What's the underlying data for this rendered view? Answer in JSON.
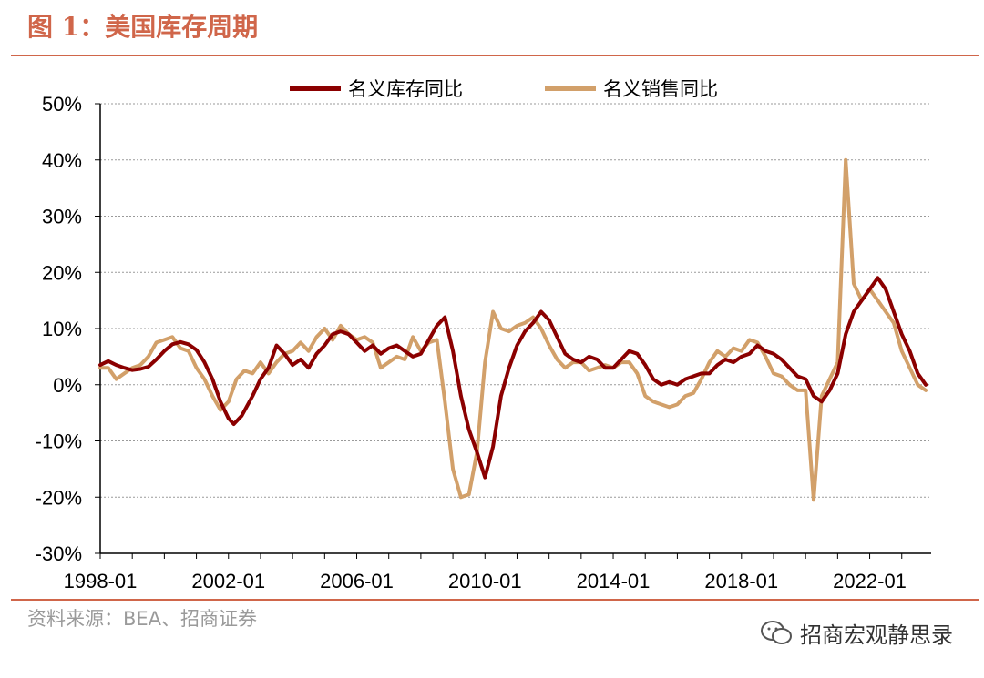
{
  "header": {
    "title": "图 1：美国库存周期"
  },
  "footer": {
    "source": "资料来源：BEA、招商证券",
    "watermark": "招商宏观静思录"
  },
  "colors": {
    "accent": "#D0664A",
    "inventory": "#8B0000",
    "sales": "#D2A06A",
    "grid": "#9a9a9a"
  },
  "chart_data": {
    "type": "line",
    "title": "",
    "xlabel": "",
    "ylabel": "",
    "ylim": [
      -30,
      50
    ],
    "y_ticks": [
      -30,
      -20,
      -10,
      0,
      10,
      20,
      30,
      40,
      50
    ],
    "y_tick_labels": [
      "-30%",
      "-20%",
      "-10%",
      "0%",
      "10%",
      "20%",
      "30%",
      "40%",
      "50%"
    ],
    "x_range": [
      "1998-01",
      "2023-12"
    ],
    "x_ticks": [
      "1998-01",
      "2002-01",
      "2006-01",
      "2010-01",
      "2014-01",
      "2018-01",
      "2022-01"
    ],
    "grid": "horizontal dotted",
    "legend": "top-center",
    "series": [
      {
        "name": "名义库存同比",
        "color": "#8B0000",
        "points": [
          [
            "1998-01",
            3.5
          ],
          [
            "1998-04",
            4.2
          ],
          [
            "1998-07",
            3.5
          ],
          [
            "1998-10",
            3.0
          ],
          [
            "1999-01",
            2.6
          ],
          [
            "1999-04",
            2.8
          ],
          [
            "1999-07",
            3.2
          ],
          [
            "1999-10",
            4.5
          ],
          [
            "2000-01",
            6.0
          ],
          [
            "2000-04",
            7.2
          ],
          [
            "2000-07",
            7.6
          ],
          [
            "2000-10",
            7.2
          ],
          [
            "2001-01",
            6.2
          ],
          [
            "2001-04",
            4.0
          ],
          [
            "2001-07",
            1.0
          ],
          [
            "2001-10",
            -3.0
          ],
          [
            "2002-01",
            -6.0
          ],
          [
            "2002-03",
            -7.0
          ],
          [
            "2002-06",
            -5.5
          ],
          [
            "2002-10",
            -2.0
          ],
          [
            "2003-01",
            1.0
          ],
          [
            "2003-04",
            3.0
          ],
          [
            "2003-07",
            7.0
          ],
          [
            "2003-10",
            5.5
          ],
          [
            "2004-01",
            3.5
          ],
          [
            "2004-04",
            4.5
          ],
          [
            "2004-07",
            3.0
          ],
          [
            "2004-10",
            5.5
          ],
          [
            "2005-01",
            7.0
          ],
          [
            "2005-04",
            9.0
          ],
          [
            "2005-07",
            9.5
          ],
          [
            "2005-10",
            9.0
          ],
          [
            "2006-01",
            7.5
          ],
          [
            "2006-04",
            6.0
          ],
          [
            "2006-07",
            7.0
          ],
          [
            "2006-10",
            5.5
          ],
          [
            "2007-01",
            6.5
          ],
          [
            "2007-04",
            7.0
          ],
          [
            "2007-07",
            6.0
          ],
          [
            "2007-10",
            5.0
          ],
          [
            "2008-01",
            5.5
          ],
          [
            "2008-04",
            8.0
          ],
          [
            "2008-07",
            10.5
          ],
          [
            "2008-10",
            12.0
          ],
          [
            "2009-01",
            6.0
          ],
          [
            "2009-04",
            -2.0
          ],
          [
            "2009-07",
            -8.0
          ],
          [
            "2009-10",
            -12.0
          ],
          [
            "2010-01",
            -16.5
          ],
          [
            "2010-04",
            -11.0
          ],
          [
            "2010-07",
            -2.0
          ],
          [
            "2010-10",
            3.0
          ],
          [
            "2011-01",
            7.0
          ],
          [
            "2011-04",
            9.5
          ],
          [
            "2011-07",
            11.0
          ],
          [
            "2011-10",
            13.0
          ],
          [
            "2012-01",
            11.5
          ],
          [
            "2012-04",
            8.5
          ],
          [
            "2012-07",
            5.5
          ],
          [
            "2012-10",
            4.5
          ],
          [
            "2013-01",
            4.0
          ],
          [
            "2013-04",
            5.0
          ],
          [
            "2013-07",
            4.5
          ],
          [
            "2013-10",
            3.0
          ],
          [
            "2014-01",
            3.0
          ],
          [
            "2014-04",
            4.5
          ],
          [
            "2014-07",
            6.0
          ],
          [
            "2014-10",
            5.5
          ],
          [
            "2015-01",
            3.5
          ],
          [
            "2015-04",
            1.0
          ],
          [
            "2015-07",
            0.0
          ],
          [
            "2015-10",
            0.5
          ],
          [
            "2016-01",
            0.0
          ],
          [
            "2016-04",
            1.0
          ],
          [
            "2016-07",
            1.5
          ],
          [
            "2016-10",
            2.0
          ],
          [
            "2017-01",
            2.0
          ],
          [
            "2017-04",
            3.5
          ],
          [
            "2017-07",
            4.5
          ],
          [
            "2017-10",
            4.0
          ],
          [
            "2018-01",
            5.0
          ],
          [
            "2018-04",
            5.5
          ],
          [
            "2018-07",
            7.0
          ],
          [
            "2018-10",
            6.0
          ],
          [
            "2019-01",
            5.5
          ],
          [
            "2019-04",
            4.5
          ],
          [
            "2019-07",
            3.0
          ],
          [
            "2019-10",
            1.5
          ],
          [
            "2020-01",
            1.0
          ],
          [
            "2020-04",
            -2.0
          ],
          [
            "2020-07",
            -3.0
          ],
          [
            "2020-10",
            -1.0
          ],
          [
            "2021-01",
            2.0
          ],
          [
            "2021-04",
            9.0
          ],
          [
            "2021-07",
            13.0
          ],
          [
            "2021-10",
            15.0
          ],
          [
            "2022-01",
            17.0
          ],
          [
            "2022-04",
            19.0
          ],
          [
            "2022-07",
            17.0
          ],
          [
            "2022-10",
            13.0
          ],
          [
            "2023-01",
            9.0
          ],
          [
            "2023-04",
            6.0
          ],
          [
            "2023-07",
            2.0
          ],
          [
            "2023-10",
            0.0
          ]
        ]
      },
      {
        "name": "名义销售同比",
        "color": "#D2A06A",
        "points": [
          [
            "1998-01",
            3.0
          ],
          [
            "1998-04",
            3.0
          ],
          [
            "1998-07",
            1.0
          ],
          [
            "1998-10",
            2.0
          ],
          [
            "1999-01",
            3.0
          ],
          [
            "1999-04",
            3.5
          ],
          [
            "1999-07",
            5.0
          ],
          [
            "1999-10",
            7.5
          ],
          [
            "2000-01",
            8.0
          ],
          [
            "2000-04",
            8.5
          ],
          [
            "2000-07",
            6.5
          ],
          [
            "2000-10",
            6.0
          ],
          [
            "2001-01",
            3.0
          ],
          [
            "2001-04",
            1.0
          ],
          [
            "2001-07",
            -2.0
          ],
          [
            "2001-10",
            -4.5
          ],
          [
            "2002-01",
            -3.0
          ],
          [
            "2002-04",
            1.0
          ],
          [
            "2002-07",
            2.5
          ],
          [
            "2002-10",
            2.0
          ],
          [
            "2003-01",
            4.0
          ],
          [
            "2003-04",
            2.0
          ],
          [
            "2003-07",
            4.0
          ],
          [
            "2003-10",
            5.5
          ],
          [
            "2004-01",
            6.0
          ],
          [
            "2004-04",
            7.5
          ],
          [
            "2004-07",
            6.0
          ],
          [
            "2004-10",
            8.5
          ],
          [
            "2005-01",
            10.0
          ],
          [
            "2005-04",
            8.0
          ],
          [
            "2005-07",
            10.5
          ],
          [
            "2005-10",
            9.0
          ],
          [
            "2006-01",
            8.0
          ],
          [
            "2006-04",
            8.5
          ],
          [
            "2006-07",
            7.5
          ],
          [
            "2006-10",
            3.0
          ],
          [
            "2007-01",
            4.0
          ],
          [
            "2007-04",
            5.0
          ],
          [
            "2007-07",
            4.5
          ],
          [
            "2007-10",
            8.5
          ],
          [
            "2008-01",
            6.0
          ],
          [
            "2008-04",
            7.5
          ],
          [
            "2008-07",
            8.0
          ],
          [
            "2008-10",
            -3.0
          ],
          [
            "2009-01",
            -15.0
          ],
          [
            "2009-04",
            -20.0
          ],
          [
            "2009-07",
            -19.5
          ],
          [
            "2009-10",
            -12.0
          ],
          [
            "2010-01",
            4.0
          ],
          [
            "2010-04",
            13.0
          ],
          [
            "2010-07",
            10.0
          ],
          [
            "2010-10",
            9.5
          ],
          [
            "2011-01",
            10.5
          ],
          [
            "2011-04",
            11.0
          ],
          [
            "2011-07",
            12.0
          ],
          [
            "2011-10",
            10.0
          ],
          [
            "2012-01",
            7.0
          ],
          [
            "2012-04",
            4.5
          ],
          [
            "2012-07",
            3.0
          ],
          [
            "2012-10",
            4.0
          ],
          [
            "2013-01",
            4.0
          ],
          [
            "2013-04",
            2.5
          ],
          [
            "2013-07",
            3.0
          ],
          [
            "2013-10",
            3.5
          ],
          [
            "2014-01",
            3.0
          ],
          [
            "2014-04",
            4.0
          ],
          [
            "2014-07",
            4.0
          ],
          [
            "2014-10",
            2.0
          ],
          [
            "2015-01",
            -2.0
          ],
          [
            "2015-04",
            -3.0
          ],
          [
            "2015-07",
            -3.5
          ],
          [
            "2015-10",
            -4.0
          ],
          [
            "2016-01",
            -3.5
          ],
          [
            "2016-04",
            -2.0
          ],
          [
            "2016-07",
            -1.5
          ],
          [
            "2016-10",
            1.0
          ],
          [
            "2017-01",
            4.0
          ],
          [
            "2017-04",
            6.0
          ],
          [
            "2017-07",
            5.0
          ],
          [
            "2017-10",
            6.5
          ],
          [
            "2018-01",
            6.0
          ],
          [
            "2018-04",
            8.0
          ],
          [
            "2018-07",
            7.5
          ],
          [
            "2018-10",
            5.0
          ],
          [
            "2019-01",
            2.0
          ],
          [
            "2019-04",
            1.5
          ],
          [
            "2019-07",
            0.0
          ],
          [
            "2019-10",
            -1.0
          ],
          [
            "2020-01",
            -1.0
          ],
          [
            "2020-04",
            -20.5
          ],
          [
            "2020-07",
            -2.0
          ],
          [
            "2020-10",
            1.0
          ],
          [
            "2021-01",
            4.0
          ],
          [
            "2021-04",
            40.0
          ],
          [
            "2021-07",
            18.0
          ],
          [
            "2021-10",
            15.0
          ],
          [
            "2022-01",
            17.0
          ],
          [
            "2022-04",
            15.0
          ],
          [
            "2022-07",
            13.0
          ],
          [
            "2022-10",
            11.0
          ],
          [
            "2023-01",
            6.0
          ],
          [
            "2023-04",
            3.0
          ],
          [
            "2023-07",
            0.0
          ],
          [
            "2023-10",
            -1.0
          ]
        ]
      }
    ]
  }
}
